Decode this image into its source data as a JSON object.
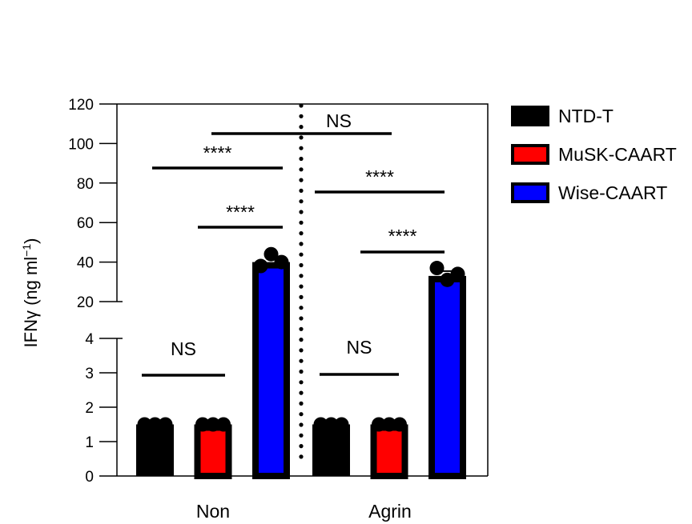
{
  "chart_data": {
    "type": "bar",
    "ylabel": "IFNγ (ng ml",
    "ylabel_superscript": "−1",
    "ylabel_suffix": ")",
    "categories": [
      "Non",
      "Agrin"
    ],
    "y_axis": {
      "broken": true,
      "lower_segment": {
        "range": [
          0,
          4
        ],
        "ticks": [
          "0",
          "1",
          "2",
          "3",
          "4"
        ]
      },
      "upper_segment": {
        "range": [
          20,
          120
        ],
        "ticks": [
          "20",
          "40",
          "60",
          "80",
          "100",
          "120"
        ]
      }
    },
    "series": [
      {
        "name": "NTD-T",
        "color": "#000000",
        "values": [
          1.5,
          1.5
        ],
        "points": [
          [
            1.5,
            1.5,
            1.5
          ],
          [
            1.5,
            1.5,
            1.5
          ]
        ]
      },
      {
        "name": "MuSK-CAART",
        "color": "#ff0000",
        "values": [
          1.5,
          1.5
        ],
        "points": [
          [
            1.5,
            1.5,
            1.5
          ],
          [
            1.5,
            1.5,
            1.5
          ]
        ]
      },
      {
        "name": "Wise-CAART",
        "color": "#0000ff",
        "values": [
          40,
          33
        ],
        "points": [
          [
            38,
            44,
            40
          ],
          [
            37,
            31,
            34
          ]
        ]
      }
    ],
    "significance": [
      {
        "label": "NS",
        "group": "Non",
        "between": [
          "NTD-T",
          "MuSK-CAART"
        ]
      },
      {
        "label": "****",
        "group": "Non",
        "between": [
          "MuSK-CAART",
          "Wise-CAART"
        ]
      },
      {
        "label": "****",
        "group": "Non",
        "between": [
          "NTD-T",
          "Wise-CAART"
        ]
      },
      {
        "label": "NS",
        "group": "Agrin",
        "between": [
          "NTD-T",
          "MuSK-CAART"
        ]
      },
      {
        "label": "****",
        "group": "Agrin",
        "between": [
          "MuSK-CAART",
          "Wise-CAART"
        ]
      },
      {
        "label": "****",
        "group": "Agrin",
        "between": [
          "NTD-T",
          "Wise-CAART"
        ]
      },
      {
        "label": "NS",
        "group": "Non vs Agrin",
        "between": [
          "Wise-CAART (Non)",
          "Wise-CAART (Agrin)"
        ]
      }
    ],
    "legend_position": "right",
    "grid": false
  }
}
